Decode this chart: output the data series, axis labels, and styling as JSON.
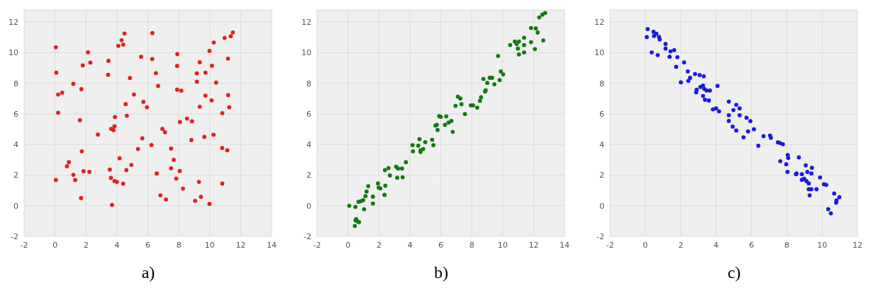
{
  "chart_data": [
    {
      "type": "scatter",
      "color": "#e02020",
      "marker": "circle",
      "grid": true,
      "annotations": [
        "a)"
      ],
      "xlim": [
        -2,
        14
      ],
      "xticks": [
        -2,
        0,
        2,
        4,
        6,
        8,
        10,
        12,
        14
      ],
      "ylim": [
        -2,
        12.8
      ],
      "yticks": [
        -2,
        0,
        2,
        4,
        6,
        8,
        10,
        12
      ],
      "x": [
        0.05,
        0.08,
        0.2,
        0.46,
        0.2,
        0.05,
        0.77,
        0.89,
        1.18,
        1.3,
        1.18,
        1.61,
        1.7,
        1.79,
        1.73,
        1.84,
        1.68,
        2.13,
        2.28,
        2.22,
        2.77,
        3.45,
        3.43,
        3.87,
        3.84,
        3.63,
        3.78,
        3.54,
        3.61,
        3.84,
        4.0,
        4.4,
        3.68,
        4.09,
        4.3,
        4.41,
        4.49,
        4.17,
        4.56,
        4.64,
        4.61,
        4.84,
        4.93,
        5.1,
        5.36,
        5.56,
        5.64,
        5.71,
        5.94,
        6.29,
        6.28,
        6.23,
        6.52,
        6.57,
        6.66,
        6.81,
        6.94,
        7.11,
        7.17,
        7.5,
        7.67,
        7.5,
        7.83,
        7.9,
        7.89,
        7.89,
        8.16,
        8.07,
        8.06,
        8.27,
        8.53,
        8.85,
        8.81,
        9.16,
        9.17,
        9.35,
        9.35,
        9.3,
        9.05,
        9.43,
        9.72,
        9.72,
        9.65,
        9.98,
        10.14,
        10.12,
        10.26,
        10.24,
        9.98,
        10.41,
        10.96,
        11.18,
        11.36,
        11.49,
        11.19,
        11.26,
        10.81,
        10.8,
        11.13,
        10.81
      ],
      "values": [
        10.36,
        8.7,
        7.27,
        7.39,
        6.08,
        1.68,
        2.58,
        2.85,
        2.02,
        1.68,
        7.97,
        5.59,
        7.62,
        9.17,
        3.56,
        2.26,
        0.5,
        10.03,
        9.36,
        2.21,
        4.65,
        9.47,
        8.56,
        5.8,
        5.2,
        5.02,
        4.94,
        2.36,
        1.82,
        1.61,
        1.56,
        1.44,
        0.05,
        10.45,
        10.82,
        10.53,
        11.26,
        3.1,
        6.64,
        5.88,
        2.33,
        8.35,
        2.67,
        7.27,
        3.71,
        9.74,
        4.41,
        6.79,
        6.44,
        11.29,
        9.59,
        3.97,
        8.67,
        2.11,
        7.83,
        0.68,
        5.02,
        4.8,
        0.41,
        3.74,
        3.0,
        2.45,
        1.77,
        9.91,
        9.14,
        7.59,
        7.52,
        5.47,
        2.27,
        1.12,
        5.7,
        5.52,
        4.29,
        8.65,
        8.11,
        9.38,
        6.47,
        1.56,
        0.32,
        0.58,
        8.7,
        7.2,
        4.5,
        10.12,
        9.15,
        6.89,
        10.67,
        4.64,
        0.12,
        8.05,
        10.97,
        9.62,
        11.08,
        11.33,
        7.23,
        6.44,
        6.05,
        3.77,
        3.62,
        1.45
      ]
    },
    {
      "type": "scatter",
      "color": "#137a13",
      "marker": "circle",
      "grid": true,
      "annotations": [
        "b)"
      ],
      "xlim": [
        -2,
        14
      ],
      "xticks": [
        -2,
        0,
        2,
        4,
        6,
        8,
        10,
        12,
        14
      ],
      "ylim": [
        -2,
        12.8
      ],
      "yticks": [
        -2,
        0,
        2,
        4,
        6,
        8,
        10,
        12
      ],
      "x": [
        0.08,
        0.48,
        0.53,
        0.59,
        0.48,
        0.71,
        0.44,
        0.68,
        0.83,
        0.98,
        1.04,
        1.13,
        1.2,
        1.31,
        1.61,
        1.61,
        1.94,
        1.98,
        2.09,
        2.41,
        2.36,
        2.39,
        2.62,
        2.71,
        3.11,
        3.18,
        3.23,
        3.49,
        3.53,
        3.74,
        4.17,
        4.2,
        4.54,
        4.62,
        4.69,
        4.86,
        4.99,
        4.69,
        5.44,
        5.52,
        5.65,
        5.74,
        5.79,
        5.89,
        6.0,
        6.35,
        6.27,
        6.5,
        6.68,
        6.77,
        6.95,
        7.1,
        7.26,
        7.33,
        7.56,
        7.94,
        8.08,
        8.35,
        8.53,
        8.6,
        8.86,
        8.9,
        8.75,
        9.0,
        9.16,
        9.31,
        9.46,
        9.7,
        9.8,
        9.88,
        10.03,
        10.48,
        10.78,
        10.9,
        11.05,
        10.98,
        11.05,
        11.38,
        11.38,
        11.38,
        11.83,
        12.14,
        12.26,
        11.83,
        12.08,
        12.62,
        12.36,
        12.56,
        12.74
      ],
      "values": [
        0,
        -0.08,
        -0.87,
        -1.02,
        -0.95,
        -1.07,
        -1.32,
        0.26,
        0.3,
        0.36,
        -0.23,
        0.63,
        0.93,
        1.28,
        0.59,
        0.14,
        1.46,
        1.19,
        1.13,
        1.31,
        0.71,
        2.33,
        2.46,
        1.98,
        2.55,
        1.83,
        2.43,
        2.43,
        1.86,
        2.85,
        3.96,
        3.56,
        3.93,
        4.35,
        3.63,
        3.71,
        4.16,
        3.51,
        4.31,
        3.96,
        5.24,
        5.29,
        4.95,
        5.86,
        5.81,
        5.84,
        5.29,
        5.44,
        5.54,
        4.83,
        6.53,
        7.13,
        7.01,
        6.64,
        5.99,
        6.56,
        6.56,
        6.41,
        6.86,
        7.09,
        7.46,
        7.54,
        8.29,
        8.03,
        8.36,
        8.36,
        7.94,
        9.79,
        8.21,
        8.78,
        8.59,
        10.51,
        10.74,
        10.57,
        10.74,
        10.27,
        9.89,
        10.5,
        10.98,
        10.02,
        11.62,
        11.59,
        11.32,
        10.69,
        10.24,
        10.81,
        12.31,
        12.49,
        12.6
      ]
    },
    {
      "type": "scatter",
      "color": "#1a1ae0",
      "marker": "circle",
      "grid": true,
      "annotations": [
        "c)"
      ],
      "xlim": [
        -2,
        12
      ],
      "xticks": [
        -2,
        0,
        2,
        4,
        6,
        8,
        10,
        12
      ],
      "ylim": [
        -2,
        12.8
      ],
      "yticks": [
        -2,
        0,
        2,
        4,
        6,
        8,
        10,
        12
      ],
      "x": [
        0.13,
        0.08,
        0.46,
        0.49,
        0.62,
        0.77,
        0.81,
        0.36,
        0.7,
        1.14,
        1.14,
        1.37,
        1.42,
        1.63,
        1.81,
        1.74,
        2.19,
        2.01,
        2.4,
        2.43,
        2.53,
        2.81,
        3.07,
        3.3,
        2.9,
        2.87,
        3.11,
        3.26,
        3.33,
        3.46,
        3.65,
        3.26,
        3.37,
        3.59,
        3.82,
        4.0,
        4.17,
        4.08,
        4.72,
        4.72,
        4.72,
        4.94,
        5.14,
        4.98,
        5.14,
        5.33,
        5.33,
        5.55,
        5.72,
        5.94,
        5.81,
        6.14,
        6.39,
        6.68,
        7.05,
        7.1,
        7.5,
        7.61,
        7.78,
        7.63,
        8.05,
        8.08,
        7.97,
        8.04,
        8.55,
        8.52,
        8.68,
        8.85,
        8.85,
        9.07,
        9.16,
        8.98,
        9.11,
        9.24,
        9.42,
        9.39,
        9.24,
        9.39,
        9.29,
        9.68,
        9.88,
        10.1,
        10.23,
        10.34,
        10.49,
        10.68,
        10.81,
        10.79,
        10.97
      ],
      "values": [
        11.55,
        11.02,
        11.37,
        11.1,
        11.25,
        11.04,
        10.87,
        10.02,
        9.85,
        10.57,
        10.27,
        9.74,
        10.09,
        10.17,
        9.71,
        9.08,
        9.37,
        8.06,
        8.78,
        8.16,
        8.36,
        8.61,
        8.54,
        8.46,
        7.58,
        7.41,
        7.76,
        7.86,
        7.64,
        7.53,
        7.53,
        7.18,
        6.93,
        6.88,
        6.3,
        6.36,
        6.17,
        7.83,
        6.81,
        5.92,
        5.54,
        5.17,
        4.92,
        6.25,
        6.6,
        6.36,
        5.92,
        4.47,
        5.75,
        5.53,
        4.86,
        5.0,
        3.92,
        4.55,
        4.59,
        4.44,
        4.14,
        4.1,
        4.02,
        2.91,
        3.31,
        3.12,
        2.71,
        2.21,
        2.11,
        2.06,
        3.16,
        2.06,
        1.69,
        2.64,
        2.21,
        1.76,
        1.61,
        1.46,
        2.48,
        2.11,
        1.08,
        1.08,
        0.68,
        1.08,
        1.85,
        1.4,
        1.36,
        -0.23,
        -0.5,
        0.8,
        0.35,
        0.2,
        0.56
      ]
    }
  ]
}
